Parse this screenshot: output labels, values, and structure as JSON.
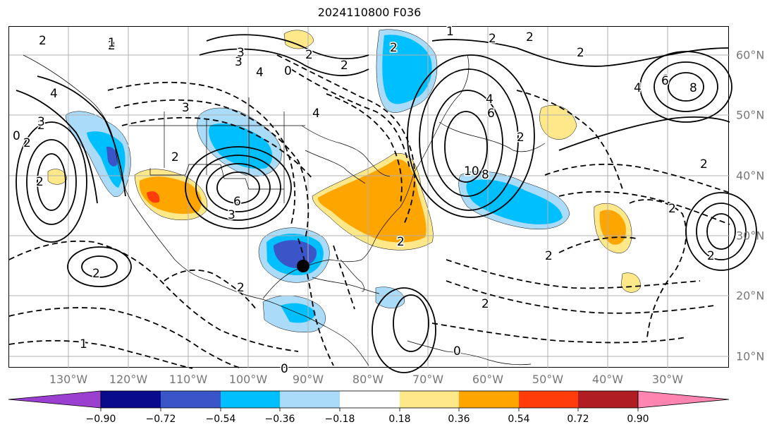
{
  "title": "2024110800 F036",
  "colors": {
    "purple": "#9b3fd0",
    "navy": "#0a0a8c",
    "royal_blue": "#3a55c8",
    "deep_sky": "#00bfff",
    "light_sky": "#aadcfa",
    "white": "#ffffff",
    "light_yellow": "#ffe88a",
    "orange": "#ffa500",
    "red_orange": "#ff3c0a",
    "dark_red": "#b01e23",
    "pink": "#ff85b0"
  },
  "longitude_labels": [
    "130°W",
    "120°W",
    "110°W",
    "100°W",
    "90°W",
    "80°W",
    "70°W",
    "60°W",
    "50°W",
    "40°W",
    "30°W"
  ],
  "latitude_labels": [
    "60°N",
    "50°N",
    "40°N",
    "30°N",
    "20°N",
    "10°N"
  ],
  "colorbar": {
    "ticks": [
      "−0.90",
      "−0.72",
      "−0.54",
      "−0.36",
      "−0.18",
      "0.18",
      "0.36",
      "0.54",
      "0.72",
      "0.90"
    ]
  },
  "contour_labels": [
    "2",
    "2",
    "2",
    "1",
    "2",
    "2",
    "3",
    "0",
    "2",
    "4",
    "3",
    "2",
    "4",
    "3",
    "4",
    "2",
    "0",
    "2",
    "6",
    "3",
    "3",
    "6",
    "4",
    "6",
    "8",
    "10",
    "2",
    "2",
    "4",
    "6",
    "8",
    "2",
    "2",
    "2",
    "2",
    "2",
    "2",
    "1",
    "2",
    "2",
    "0",
    "0",
    "1",
    "2",
    "2"
  ],
  "storm_marker": "filled-circle"
}
